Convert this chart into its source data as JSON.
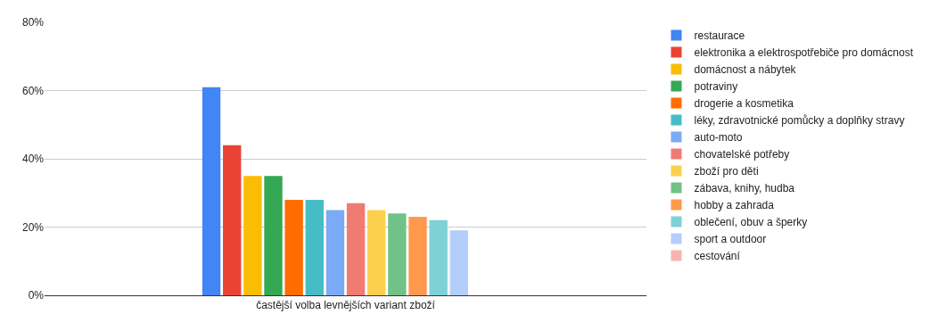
{
  "chart_data": {
    "type": "bar",
    "categories": [
      "častější volba levnějších variant zboží"
    ],
    "series": [
      {
        "name": "restaurace",
        "color": "#4285f4",
        "values": [
          61
        ]
      },
      {
        "name": "elektronika a elektrospotřebiče pro domácnost",
        "color": "#ea4335",
        "values": [
          44
        ]
      },
      {
        "name": "domácnost a nábytek",
        "color": "#fbbc04",
        "values": [
          35
        ]
      },
      {
        "name": "potraviny",
        "color": "#34a853",
        "values": [
          35
        ]
      },
      {
        "name": "drogerie a kosmetika",
        "color": "#ff6d01",
        "values": [
          28
        ]
      },
      {
        "name": "léky, zdravotnické pomůcky a doplňky stravy",
        "color": "#46bdc6",
        "values": [
          28
        ]
      },
      {
        "name": "auto-moto",
        "color": "#7baaf7",
        "values": [
          25
        ]
      },
      {
        "name": "chovatelské potřeby",
        "color": "#f07b72",
        "values": [
          27
        ]
      },
      {
        "name": "zboží pro děti",
        "color": "#fcd04f",
        "values": [
          25
        ]
      },
      {
        "name": "zábava, knihy, hudba",
        "color": "#71c287",
        "values": [
          24
        ]
      },
      {
        "name": "hobby a zahrada",
        "color": "#ff994d",
        "values": [
          23
        ]
      },
      {
        "name": "oblečení, obuv a šperky",
        "color": "#7ed1d7",
        "values": [
          22
        ]
      },
      {
        "name": "sport a outdoor",
        "color": "#b3cefb",
        "values": [
          19
        ]
      },
      {
        "name": "cestování",
        "color": "#f7b4ae",
        "values": [
          null
        ]
      }
    ],
    "ylim": [
      0,
      80
    ],
    "yticks": [
      {
        "value": 0,
        "label": "0%"
      },
      {
        "value": 20,
        "label": "20%"
      },
      {
        "value": 40,
        "label": "40%"
      },
      {
        "value": 60,
        "label": "60%"
      },
      {
        "value": 80,
        "label": "80%"
      }
    ],
    "grid": "y",
    "legend": "right"
  }
}
